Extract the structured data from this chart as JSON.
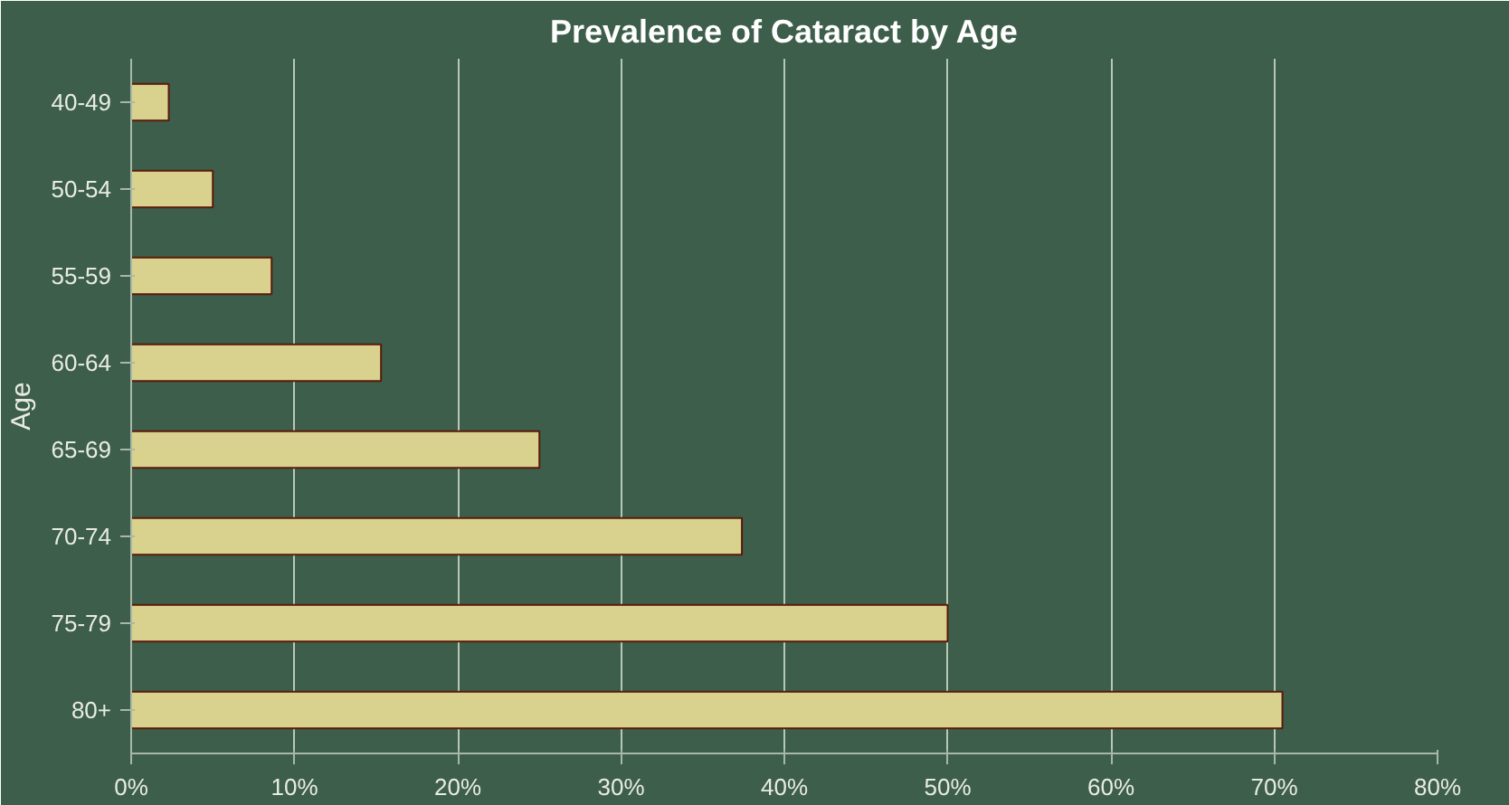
{
  "chart_data": {
    "type": "bar",
    "orientation": "horizontal",
    "title": "Prevalence of Cataract by Age",
    "ylabel": "Age",
    "categories": [
      "40-49",
      "50-54",
      "55-59",
      "60-64",
      "65-69",
      "70-74",
      "75-79",
      "80+"
    ],
    "values": [
      2.3,
      5,
      8.6,
      15.3,
      25,
      37.4,
      50,
      70.5
    ],
    "color": "#d9d28e",
    "xlim": [
      0,
      80
    ],
    "xticks": [
      {
        "value": 0,
        "label": "0%"
      },
      {
        "value": 10,
        "label": "10%"
      },
      {
        "value": 20,
        "label": "20%"
      },
      {
        "value": 30,
        "label": "30%"
      },
      {
        "value": 40,
        "label": "40%"
      },
      {
        "value": 50,
        "label": "50%"
      },
      {
        "value": 60,
        "label": "60%"
      },
      {
        "value": 70,
        "label": "70%"
      },
      {
        "value": 80,
        "label": "80%"
      }
    ],
    "grid": "x"
  }
}
